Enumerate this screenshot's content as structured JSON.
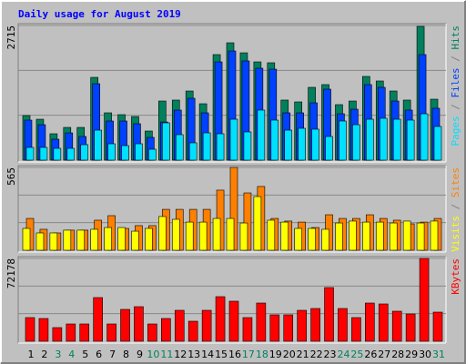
{
  "chart_data": [
    {
      "type": "bar",
      "title": "Daily usage for August 2019",
      "ylim": [
        0,
        2715
      ],
      "yticks": [
        2715
      ],
      "legend_separator": " / ",
      "series": [
        {
          "name": "Hits",
          "color": "#00805c",
          "values": [
            899,
            825,
            532,
            660,
            660,
            1669,
            954,
            917,
            880,
            587,
            1192,
            1211,
            1394,
            1137,
            2128,
            2366,
            2164,
            1981,
            1963,
            1211,
            1174,
            1468,
            1523,
            1119,
            1192,
            1688,
            1596,
            1394,
            1211,
            2697,
            1229
          ]
        },
        {
          "name": "Files",
          "color": "#0040ff",
          "values": [
            807,
            715,
            422,
            550,
            477,
            1541,
            789,
            789,
            734,
            459,
            770,
            1009,
            1247,
            954,
            1981,
            2201,
            2000,
            1853,
            1834,
            954,
            954,
            1156,
            1431,
            935,
            1027,
            1523,
            1468,
            1192,
            1009,
            2128,
            1046
          ]
        },
        {
          "name": "Pages",
          "color": "#00e0ff",
          "values": [
            257,
            257,
            238,
            238,
            312,
            605,
            330,
            293,
            330,
            220,
            752,
            514,
            349,
            550,
            532,
            825,
            569,
            1009,
            807,
            605,
            642,
            624,
            477,
            789,
            715,
            825,
            844,
            825,
            807,
            935,
            679
          ]
        }
      ]
    },
    {
      "type": "bar",
      "ylim": [
        0,
        565
      ],
      "yticks": [
        565
      ],
      "legend_separator": " / ",
      "series": [
        {
          "name": "Sites",
          "color": "#ff8000",
          "values": [
            217,
            143,
            118,
            137,
            137,
            205,
            236,
            149,
            168,
            168,
            279,
            279,
            279,
            279,
            410,
            565,
            391,
            435,
            217,
            199,
            192,
            155,
            242,
            217,
            217,
            242,
            217,
            205,
            180,
            192,
            217
          ]
        },
        {
          "name": "Visits",
          "color": "#ffff00",
          "values": [
            149,
            118,
            118,
            137,
            137,
            143,
            155,
            155,
            130,
            149,
            230,
            211,
            192,
            192,
            217,
            217,
            186,
            366,
            205,
            192,
            149,
            149,
            143,
            186,
            199,
            192,
            192,
            186,
            199,
            186,
            199
          ]
        }
      ]
    },
    {
      "type": "bar",
      "ylim": [
        0,
        72178
      ],
      "yticks": [
        72178
      ],
      "categories": [
        "1",
        "2",
        "3",
        "4",
        "5",
        "6",
        "7",
        "8",
        "9",
        "10",
        "11",
        "12",
        "13",
        "14",
        "15",
        "16",
        "17",
        "18",
        "19",
        "20",
        "21",
        "22",
        "23",
        "24",
        "25",
        "26",
        "27",
        "28",
        "29",
        "30",
        "31"
      ],
      "category_colors": [
        "#000000",
        "#000000",
        "#00805c",
        "#00805c",
        "#000000",
        "#000000",
        "#000000",
        "#000000",
        "#000000",
        "#00805c",
        "#00805c",
        "#000000",
        "#000000",
        "#000000",
        "#000000",
        "#000000",
        "#00805c",
        "#00805c",
        "#000000",
        "#000000",
        "#000000",
        "#000000",
        "#000000",
        "#00805c",
        "#00805c",
        "#000000",
        "#000000",
        "#000000",
        "#000000",
        "#000000",
        "#00805c"
      ],
      "series": [
        {
          "name": "KBytes",
          "color": "#ff0000",
          "values": [
            20622,
            19829,
            11897,
            15070,
            15070,
            38071,
            15070,
            27760,
            30140,
            15070,
            19829,
            26967,
            17449,
            26967,
            38865,
            34899,
            20622,
            33312,
            23001,
            23001,
            26967,
            28553,
            46796,
            28553,
            20622,
            33312,
            32519,
            26174,
            23794,
            72178,
            25381
          ]
        }
      ]
    }
  ]
}
